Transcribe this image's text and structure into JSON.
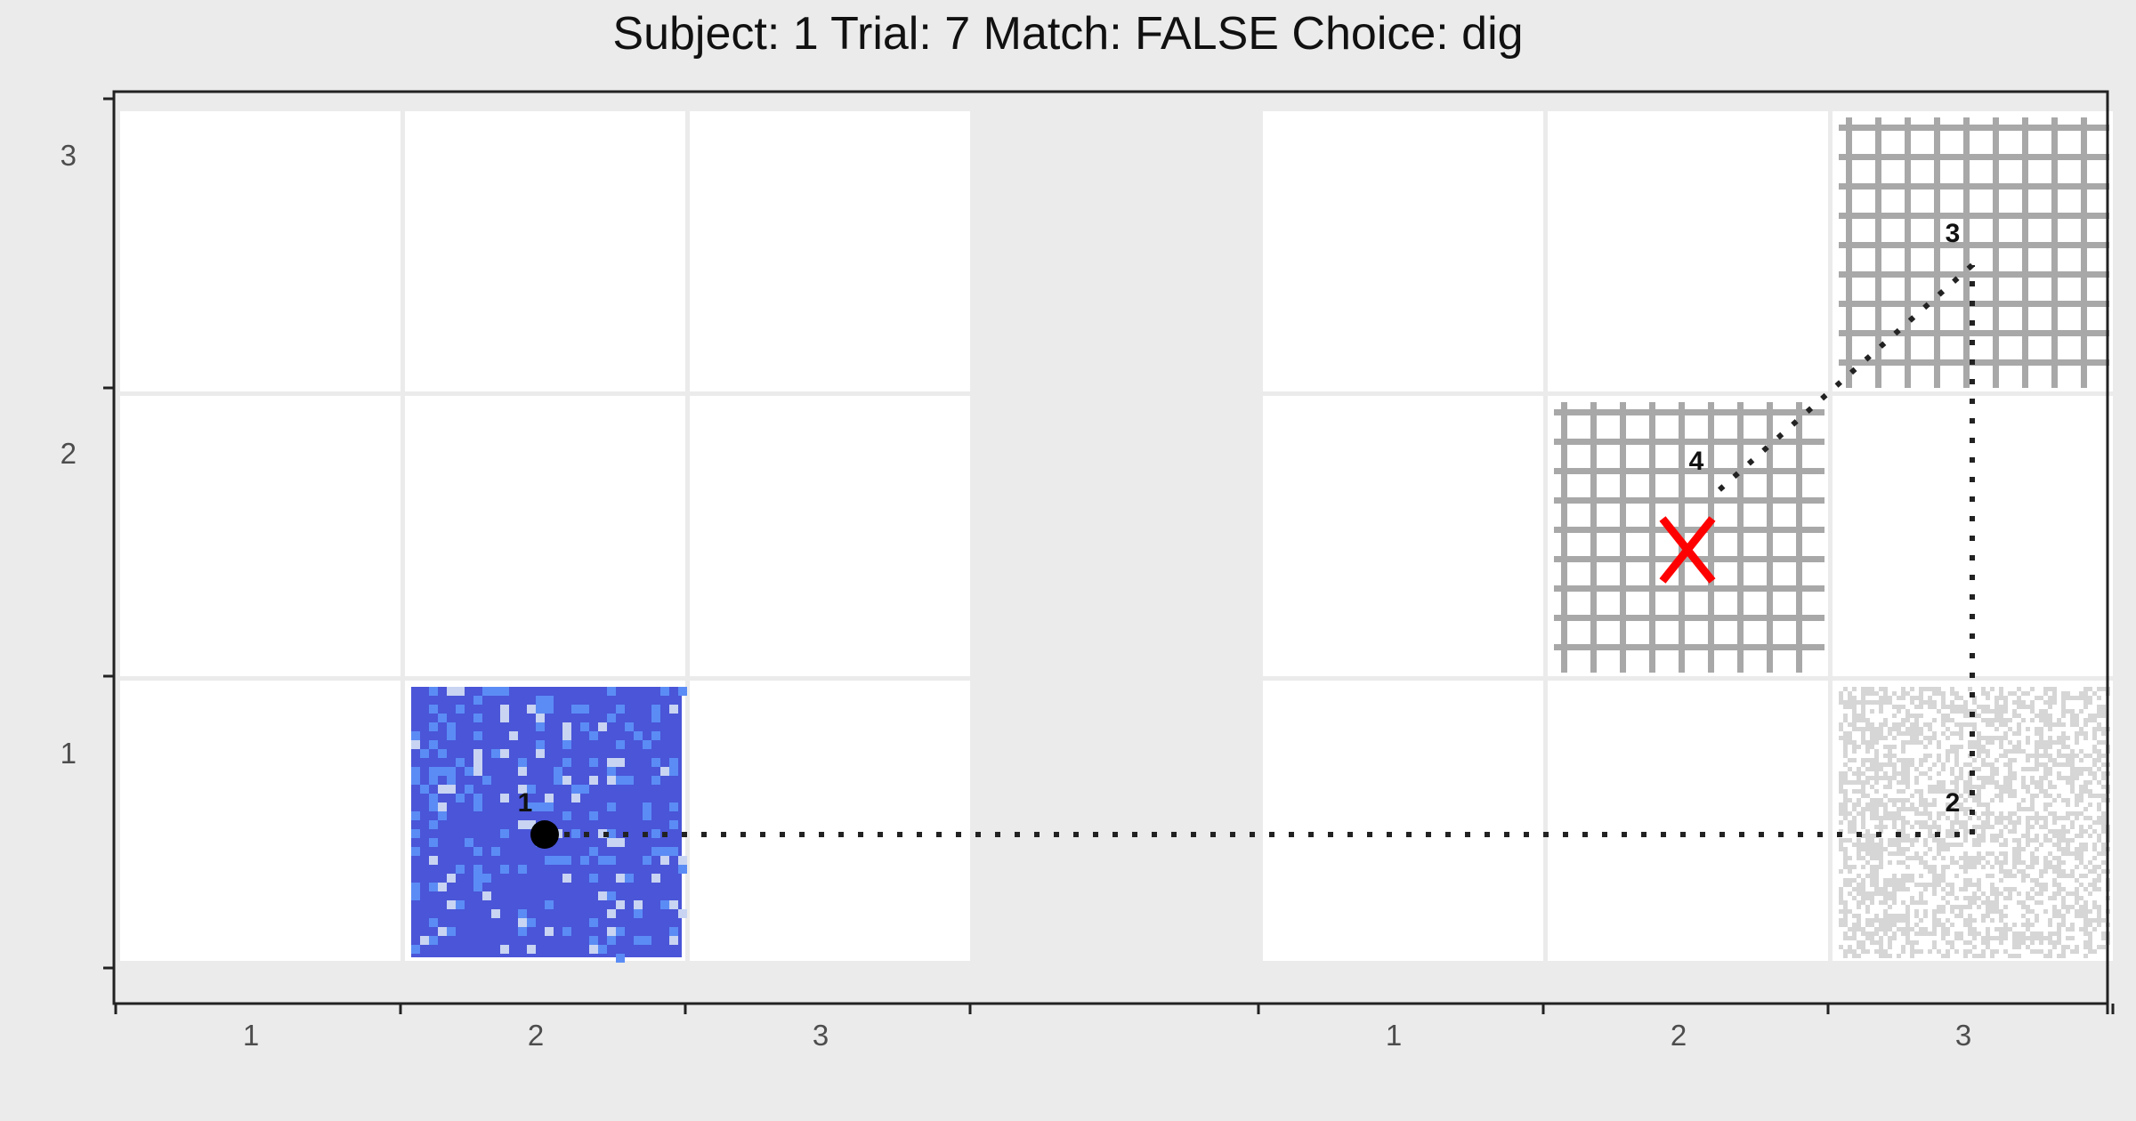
{
  "title": "Subject:  1  Trial:  7  Match: FALSE  Choice: dig",
  "chart_data": {
    "type": "scatter",
    "title": "Subject:  1  Trial:  7  Match: FALSE  Choice: dig",
    "xlabel": "",
    "ylabel": "",
    "panels": [
      {
        "x_ticks": [
          "1",
          "2",
          "3"
        ],
        "y_ticks": [
          "1",
          "2",
          "3"
        ],
        "textured_cells": [
          {
            "col": 2,
            "row": 1,
            "texture": "blue-speckle",
            "colors": [
              "#4a55d8",
              "#5b8cf5",
              "#c8d4f2"
            ]
          }
        ]
      },
      {
        "x_ticks": [
          "1",
          "2",
          "3"
        ],
        "textured_cells": [
          {
            "col": 2,
            "row": 2,
            "texture": "gray-grid",
            "colors": [
              "#a8a8a8",
              "#ffffff"
            ]
          },
          {
            "col": 3,
            "row": 3,
            "texture": "gray-grid",
            "colors": [
              "#a8a8a8",
              "#ffffff"
            ]
          },
          {
            "col": 3,
            "row": 1,
            "texture": "gray-noise",
            "colors": [
              "#d6d6d6",
              "#ffffff"
            ]
          }
        ]
      }
    ],
    "path": [
      {
        "label": "1",
        "panel": 1,
        "x": 1.5,
        "y": 0.5
      },
      {
        "label": "2",
        "panel": 2,
        "x": 2.5,
        "y": 0.5
      },
      {
        "label": "3",
        "panel": 2,
        "x": 2.5,
        "y": 2.5
      },
      {
        "label": "4",
        "panel": 2,
        "x": 1.6,
        "y": 1.7
      }
    ],
    "start_marker": {
      "panel": 1,
      "x": 1.5,
      "y": 0.5,
      "shape": "filled-circle",
      "color": "#000000"
    },
    "choice_marker": {
      "panel": 2,
      "x": 1.5,
      "y": 1.5,
      "shape": "X",
      "color": "#ff0000"
    },
    "line_style": "dotted",
    "grid": true
  }
}
